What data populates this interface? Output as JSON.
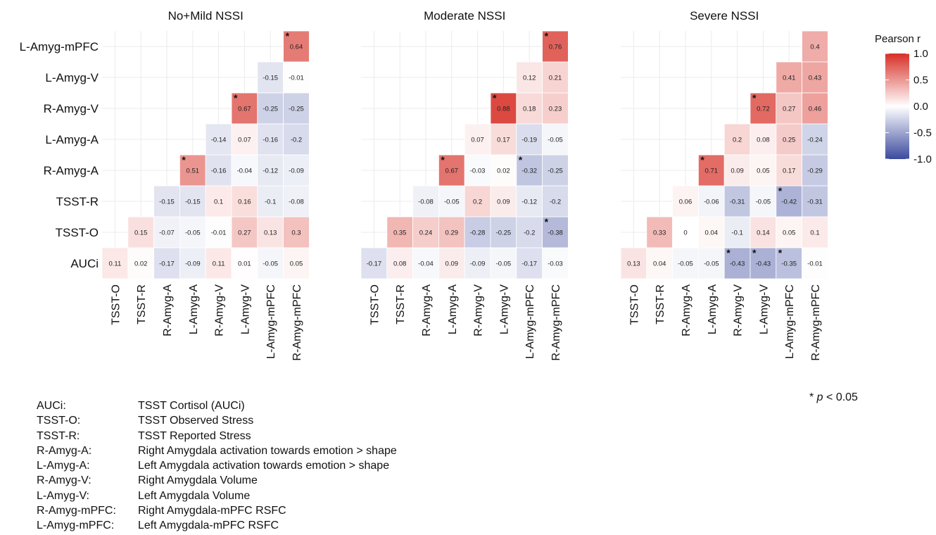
{
  "chart_data": {
    "type": "heatmap",
    "variables": [
      "AUCi",
      "TSST-O",
      "TSST-R",
      "R-Amyg-A",
      "L-Amyg-A",
      "R-Amyg-V",
      "L-Amyg-V",
      "R-Amyg-mPFC",
      "L-Amyg-mPFC"
    ],
    "x_categories": [
      "TSST-O",
      "TSST-R",
      "R-Amyg-A",
      "L-Amyg-A",
      "R-Amyg-V",
      "L-Amyg-V",
      "L-Amyg-mPFC",
      "R-Amyg-mPFC"
    ],
    "y_categories": [
      "L-Amyg-mPFC",
      "L-Amyg-V",
      "R-Amyg-V",
      "L-Amyg-A",
      "R-Amyg-A",
      "TSST-R",
      "TSST-O",
      "AUCi"
    ],
    "color_scale": {
      "title": "Pearson r",
      "range": [
        -1.0,
        1.0
      ],
      "ticks": [
        "1.0",
        "0.5",
        "0.0",
        "-0.5",
        "-1.0"
      ],
      "colors": {
        "negative": "#3b4a9e",
        "zero": "#ffffff",
        "positive": "#d73027"
      }
    },
    "significance_marker": "*",
    "panels": [
      {
        "title": "No+Mild NSSI",
        "cells": [
          {
            "row": "L-Amyg-mPFC",
            "col": "R-Amyg-mPFC",
            "r": 0.64,
            "label": "0.64",
            "sig": true
          },
          {
            "row": "L-Amyg-V",
            "col": "L-Amyg-mPFC",
            "r": -0.15,
            "label": "-0.15",
            "sig": false
          },
          {
            "row": "L-Amyg-V",
            "col": "R-Amyg-mPFC",
            "r": -0.01,
            "label": "-0.01",
            "sig": false
          },
          {
            "row": "R-Amyg-V",
            "col": "L-Amyg-V",
            "r": 0.67,
            "label": "0.67",
            "sig": true
          },
          {
            "row": "R-Amyg-V",
            "col": "L-Amyg-mPFC",
            "r": -0.25,
            "label": "-0.25",
            "sig": false
          },
          {
            "row": "R-Amyg-V",
            "col": "R-Amyg-mPFC",
            "r": -0.25,
            "label": "-0.25",
            "sig": false
          },
          {
            "row": "L-Amyg-A",
            "col": "R-Amyg-V",
            "r": -0.14,
            "label": "-0.14",
            "sig": false
          },
          {
            "row": "L-Amyg-A",
            "col": "L-Amyg-V",
            "r": 0.07,
            "label": "0.07",
            "sig": false
          },
          {
            "row": "L-Amyg-A",
            "col": "L-Amyg-mPFC",
            "r": -0.16,
            "label": "-0.16",
            "sig": false
          },
          {
            "row": "L-Amyg-A",
            "col": "R-Amyg-mPFC",
            "r": -0.2,
            "label": "-0.2",
            "sig": false
          },
          {
            "row": "R-Amyg-A",
            "col": "L-Amyg-A",
            "r": 0.51,
            "label": "0.51",
            "sig": true
          },
          {
            "row": "R-Amyg-A",
            "col": "R-Amyg-V",
            "r": -0.16,
            "label": "-0.16",
            "sig": false
          },
          {
            "row": "R-Amyg-A",
            "col": "L-Amyg-V",
            "r": -0.04,
            "label": "-0.04",
            "sig": false
          },
          {
            "row": "R-Amyg-A",
            "col": "L-Amyg-mPFC",
            "r": -0.12,
            "label": "-0.12",
            "sig": false
          },
          {
            "row": "R-Amyg-A",
            "col": "R-Amyg-mPFC",
            "r": -0.09,
            "label": "-0.09",
            "sig": false
          },
          {
            "row": "TSST-R",
            "col": "R-Amyg-A",
            "r": -0.15,
            "label": "-0.15",
            "sig": false
          },
          {
            "row": "TSST-R",
            "col": "L-Amyg-A",
            "r": -0.15,
            "label": "-0.15",
            "sig": false
          },
          {
            "row": "TSST-R",
            "col": "R-Amyg-V",
            "r": 0.1,
            "label": "0.1",
            "sig": false
          },
          {
            "row": "TSST-R",
            "col": "L-Amyg-V",
            "r": 0.16,
            "label": "0.16",
            "sig": false
          },
          {
            "row": "TSST-R",
            "col": "L-Amyg-mPFC",
            "r": -0.1,
            "label": "-0.1",
            "sig": false
          },
          {
            "row": "TSST-R",
            "col": "R-Amyg-mPFC",
            "r": -0.08,
            "label": "-0.08",
            "sig": false
          },
          {
            "row": "TSST-O",
            "col": "TSST-R",
            "r": 0.15,
            "label": "0.15",
            "sig": false
          },
          {
            "row": "TSST-O",
            "col": "R-Amyg-A",
            "r": -0.07,
            "label": "-0.07",
            "sig": false
          },
          {
            "row": "TSST-O",
            "col": "L-Amyg-A",
            "r": -0.05,
            "label": "-0.05",
            "sig": false
          },
          {
            "row": "TSST-O",
            "col": "R-Amyg-V",
            "r": -0.01,
            "label": "-0.01",
            "sig": false
          },
          {
            "row": "TSST-O",
            "col": "L-Amyg-V",
            "r": 0.27,
            "label": "0.27",
            "sig": false
          },
          {
            "row": "TSST-O",
            "col": "L-Amyg-mPFC",
            "r": 0.13,
            "label": "0.13",
            "sig": false
          },
          {
            "row": "TSST-O",
            "col": "R-Amyg-mPFC",
            "r": 0.3,
            "label": "0.3",
            "sig": false
          },
          {
            "row": "AUCi",
            "col": "TSST-O",
            "r": 0.11,
            "label": "0.11",
            "sig": false
          },
          {
            "row": "AUCi",
            "col": "TSST-R",
            "r": 0.02,
            "label": "0.02",
            "sig": false
          },
          {
            "row": "AUCi",
            "col": "R-Amyg-A",
            "r": -0.17,
            "label": "-0.17",
            "sig": false
          },
          {
            "row": "AUCi",
            "col": "L-Amyg-A",
            "r": -0.09,
            "label": "-0.09",
            "sig": false
          },
          {
            "row": "AUCi",
            "col": "R-Amyg-V",
            "r": 0.11,
            "label": "0.11",
            "sig": false
          },
          {
            "row": "AUCi",
            "col": "L-Amyg-V",
            "r": 0.01,
            "label": "0.01",
            "sig": false
          },
          {
            "row": "AUCi",
            "col": "L-Amyg-mPFC",
            "r": -0.05,
            "label": "-0.05",
            "sig": false
          },
          {
            "row": "AUCi",
            "col": "R-Amyg-mPFC",
            "r": 0.05,
            "label": "0.05",
            "sig": false
          }
        ]
      },
      {
        "title": "Moderate NSSI",
        "cells": [
          {
            "row": "L-Amyg-mPFC",
            "col": "R-Amyg-mPFC",
            "r": 0.76,
            "label": "0.76",
            "sig": true
          },
          {
            "row": "L-Amyg-V",
            "col": "L-Amyg-mPFC",
            "r": 0.12,
            "label": "0.12",
            "sig": false
          },
          {
            "row": "L-Amyg-V",
            "col": "R-Amyg-mPFC",
            "r": 0.21,
            "label": "0.21",
            "sig": false
          },
          {
            "row": "R-Amyg-V",
            "col": "L-Amyg-V",
            "r": 0.88,
            "label": "0.88",
            "sig": true
          },
          {
            "row": "R-Amyg-V",
            "col": "L-Amyg-mPFC",
            "r": 0.18,
            "label": "0.18",
            "sig": false
          },
          {
            "row": "R-Amyg-V",
            "col": "R-Amyg-mPFC",
            "r": 0.23,
            "label": "0.23",
            "sig": false
          },
          {
            "row": "L-Amyg-A",
            "col": "R-Amyg-V",
            "r": 0.07,
            "label": "0.07",
            "sig": false
          },
          {
            "row": "L-Amyg-A",
            "col": "L-Amyg-V",
            "r": 0.17,
            "label": "0.17",
            "sig": false
          },
          {
            "row": "L-Amyg-A",
            "col": "L-Amyg-mPFC",
            "r": -0.19,
            "label": "-0.19",
            "sig": false
          },
          {
            "row": "L-Amyg-A",
            "col": "R-Amyg-mPFC",
            "r": -0.05,
            "label": "-0.05",
            "sig": false
          },
          {
            "row": "R-Amyg-A",
            "col": "L-Amyg-A",
            "r": 0.67,
            "label": "0.67",
            "sig": true
          },
          {
            "row": "R-Amyg-A",
            "col": "R-Amyg-V",
            "r": -0.03,
            "label": "-0.03",
            "sig": false
          },
          {
            "row": "R-Amyg-A",
            "col": "L-Amyg-V",
            "r": 0.02,
            "label": "0.02",
            "sig": false
          },
          {
            "row": "R-Amyg-A",
            "col": "L-Amyg-mPFC",
            "r": -0.32,
            "label": "-0.32",
            "sig": true
          },
          {
            "row": "R-Amyg-A",
            "col": "R-Amyg-mPFC",
            "r": -0.25,
            "label": "-0.25",
            "sig": false
          },
          {
            "row": "TSST-R",
            "col": "R-Amyg-A",
            "r": -0.08,
            "label": "-0.08",
            "sig": false
          },
          {
            "row": "TSST-R",
            "col": "L-Amyg-A",
            "r": -0.05,
            "label": "-0.05",
            "sig": false
          },
          {
            "row": "TSST-R",
            "col": "R-Amyg-V",
            "r": 0.2,
            "label": "0.2",
            "sig": false
          },
          {
            "row": "TSST-R",
            "col": "L-Amyg-V",
            "r": 0.09,
            "label": "0.09",
            "sig": false
          },
          {
            "row": "TSST-R",
            "col": "L-Amyg-mPFC",
            "r": -0.12,
            "label": "-0.12",
            "sig": false
          },
          {
            "row": "TSST-R",
            "col": "R-Amyg-mPFC",
            "r": -0.2,
            "label": "-0.2",
            "sig": false
          },
          {
            "row": "TSST-O",
            "col": "TSST-R",
            "r": 0.35,
            "label": "0.35",
            "sig": false
          },
          {
            "row": "TSST-O",
            "col": "R-Amyg-A",
            "r": 0.24,
            "label": "0.24",
            "sig": false
          },
          {
            "row": "TSST-O",
            "col": "L-Amyg-A",
            "r": 0.29,
            "label": "0.29",
            "sig": false
          },
          {
            "row": "TSST-O",
            "col": "R-Amyg-V",
            "r": -0.28,
            "label": "-0.28",
            "sig": false
          },
          {
            "row": "TSST-O",
            "col": "L-Amyg-V",
            "r": -0.25,
            "label": "-0.25",
            "sig": false
          },
          {
            "row": "TSST-O",
            "col": "L-Amyg-mPFC",
            "r": -0.2,
            "label": "-0.2",
            "sig": false
          },
          {
            "row": "TSST-O",
            "col": "R-Amyg-mPFC",
            "r": -0.38,
            "label": "-0.38",
            "sig": true
          },
          {
            "row": "AUCi",
            "col": "TSST-O",
            "r": -0.17,
            "label": "-0.17",
            "sig": false
          },
          {
            "row": "AUCi",
            "col": "TSST-R",
            "r": 0.08,
            "label": "0.08",
            "sig": false
          },
          {
            "row": "AUCi",
            "col": "R-Amyg-A",
            "r": -0.04,
            "label": "-0.04",
            "sig": false
          },
          {
            "row": "AUCi",
            "col": "L-Amyg-A",
            "r": 0.09,
            "label": "0.09",
            "sig": false
          },
          {
            "row": "AUCi",
            "col": "R-Amyg-V",
            "r": -0.09,
            "label": "-0.09",
            "sig": false
          },
          {
            "row": "AUCi",
            "col": "L-Amyg-V",
            "r": -0.05,
            "label": "-0.05",
            "sig": false
          },
          {
            "row": "AUCi",
            "col": "L-Amyg-mPFC",
            "r": -0.17,
            "label": "-0.17",
            "sig": false
          },
          {
            "row": "AUCi",
            "col": "R-Amyg-mPFC",
            "r": -0.03,
            "label": "-0.03",
            "sig": false
          }
        ]
      },
      {
        "title": "Severe NSSI",
        "cells": [
          {
            "row": "L-Amyg-mPFC",
            "col": "R-Amyg-mPFC",
            "r": 0.4,
            "label": "0.4",
            "sig": false
          },
          {
            "row": "L-Amyg-V",
            "col": "L-Amyg-mPFC",
            "r": 0.41,
            "label": "0.41",
            "sig": false
          },
          {
            "row": "L-Amyg-V",
            "col": "R-Amyg-mPFC",
            "r": 0.43,
            "label": "0.43",
            "sig": false
          },
          {
            "row": "R-Amyg-V",
            "col": "L-Amyg-V",
            "r": 0.72,
            "label": "0.72",
            "sig": true
          },
          {
            "row": "R-Amyg-V",
            "col": "L-Amyg-mPFC",
            "r": 0.27,
            "label": "0.27",
            "sig": false
          },
          {
            "row": "R-Amyg-V",
            "col": "R-Amyg-mPFC",
            "r": 0.46,
            "label": "0.46",
            "sig": false
          },
          {
            "row": "L-Amyg-A",
            "col": "R-Amyg-V",
            "r": 0.2,
            "label": "0.2",
            "sig": false
          },
          {
            "row": "L-Amyg-A",
            "col": "L-Amyg-V",
            "r": 0.08,
            "label": "0.08",
            "sig": false
          },
          {
            "row": "L-Amyg-A",
            "col": "L-Amyg-mPFC",
            "r": 0.25,
            "label": "0.25",
            "sig": false
          },
          {
            "row": "L-Amyg-A",
            "col": "R-Amyg-mPFC",
            "r": -0.24,
            "label": "-0.24",
            "sig": false
          },
          {
            "row": "R-Amyg-A",
            "col": "L-Amyg-A",
            "r": 0.71,
            "label": "0.71",
            "sig": true
          },
          {
            "row": "R-Amyg-A",
            "col": "R-Amyg-V",
            "r": 0.09,
            "label": "0.09",
            "sig": false
          },
          {
            "row": "R-Amyg-A",
            "col": "L-Amyg-V",
            "r": 0.05,
            "label": "0.05",
            "sig": false
          },
          {
            "row": "R-Amyg-A",
            "col": "L-Amyg-mPFC",
            "r": 0.17,
            "label": "0.17",
            "sig": false
          },
          {
            "row": "R-Amyg-A",
            "col": "R-Amyg-mPFC",
            "r": -0.29,
            "label": "-0.29",
            "sig": false
          },
          {
            "row": "TSST-R",
            "col": "R-Amyg-A",
            "r": 0.06,
            "label": "0.06",
            "sig": false
          },
          {
            "row": "TSST-R",
            "col": "L-Amyg-A",
            "r": -0.06,
            "label": "-0.06",
            "sig": false
          },
          {
            "row": "TSST-R",
            "col": "R-Amyg-V",
            "r": -0.31,
            "label": "-0.31",
            "sig": false
          },
          {
            "row": "TSST-R",
            "col": "L-Amyg-V",
            "r": -0.05,
            "label": "-0.05",
            "sig": false
          },
          {
            "row": "TSST-R",
            "col": "L-Amyg-mPFC",
            "r": -0.42,
            "label": "-0.42",
            "sig": true
          },
          {
            "row": "TSST-R",
            "col": "R-Amyg-mPFC",
            "r": -0.31,
            "label": "-0.31",
            "sig": false
          },
          {
            "row": "TSST-O",
            "col": "TSST-R",
            "r": 0.33,
            "label": "0.33",
            "sig": false
          },
          {
            "row": "TSST-O",
            "col": "R-Amyg-A",
            "r": 0,
            "label": "0",
            "sig": false
          },
          {
            "row": "TSST-O",
            "col": "L-Amyg-A",
            "r": 0.04,
            "label": "0.04",
            "sig": false
          },
          {
            "row": "TSST-O",
            "col": "R-Amyg-V",
            "r": -0.1,
            "label": "-0.1",
            "sig": false
          },
          {
            "row": "TSST-O",
            "col": "L-Amyg-V",
            "r": 0.14,
            "label": "0.14",
            "sig": false
          },
          {
            "row": "TSST-O",
            "col": "L-Amyg-mPFC",
            "r": 0.05,
            "label": "0.05",
            "sig": false
          },
          {
            "row": "TSST-O",
            "col": "R-Amyg-mPFC",
            "r": 0.1,
            "label": "0.1",
            "sig": false
          },
          {
            "row": "AUCi",
            "col": "TSST-O",
            "r": 0.13,
            "label": "0.13",
            "sig": false
          },
          {
            "row": "AUCi",
            "col": "TSST-R",
            "r": 0.04,
            "label": "0.04",
            "sig": false
          },
          {
            "row": "AUCi",
            "col": "R-Amyg-A",
            "r": -0.05,
            "label": "-0.05",
            "sig": false
          },
          {
            "row": "AUCi",
            "col": "L-Amyg-A",
            "r": -0.05,
            "label": "-0.05",
            "sig": false
          },
          {
            "row": "AUCi",
            "col": "R-Amyg-V",
            "r": -0.43,
            "label": "-0.43",
            "sig": true
          },
          {
            "row": "AUCi",
            "col": "L-Amyg-V",
            "r": -0.43,
            "label": "-0.43",
            "sig": true
          },
          {
            "row": "AUCi",
            "col": "L-Amyg-mPFC",
            "r": -0.35,
            "label": "-0.35",
            "sig": true
          },
          {
            "row": "AUCi",
            "col": "R-Amyg-mPFC",
            "r": -0.01,
            "label": "-0.01",
            "sig": false
          }
        ]
      }
    ],
    "significance_note": {
      "marker": "* ",
      "italic": "p",
      "rest": " < 0.05"
    },
    "legend_entries": [
      {
        "abbr": "AUCi:",
        "desc": "TSST Cortisol (AUCi)"
      },
      {
        "abbr": "TSST-O:",
        "desc": "TSST Observed Stress"
      },
      {
        "abbr": "TSST-R:",
        "desc": "TSST Reported Stress"
      },
      {
        "abbr": "R-Amyg-A:",
        "desc": "Right Amygdala activation towards emotion > shape"
      },
      {
        "abbr": "L-Amyg-A:",
        "desc": "Left Amygdala activation towards emotion > shape"
      },
      {
        "abbr": "R-Amyg-V:",
        "desc": "Right Amygdala Volume"
      },
      {
        "abbr": "L-Amyg-V:",
        "desc": "Left Amygdala Volume"
      },
      {
        "abbr": "R-Amyg-mPFC:",
        "desc": "Right Amygdala-mPFC RSFC"
      },
      {
        "abbr": "L-Amyg-mPFC:",
        "desc": "Left Amygdala-mPFC RSFC"
      }
    ]
  }
}
